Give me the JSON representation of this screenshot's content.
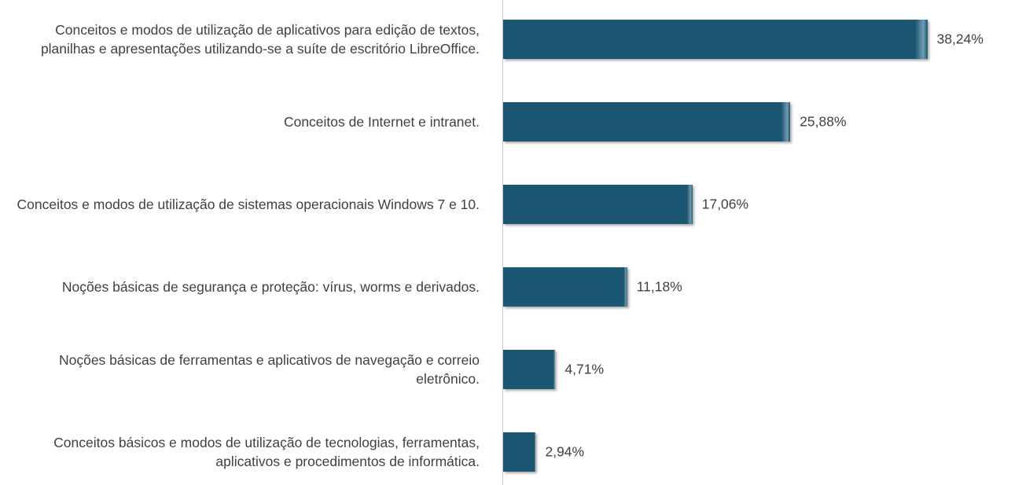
{
  "chart_data": {
    "type": "bar",
    "orientation": "horizontal",
    "categories": [
      "Conceitos e modos de utilização de aplicativos para edição de textos, planilhas e apresentações utilizando-se a suíte de escritório LibreOffice.",
      "Conceitos de Internet e intranet.",
      "Conceitos e modos de utilização de sistemas operacionais Windows 7 e 10.",
      "Noções básicas de segurança e proteção: vírus, worms e derivados.",
      "Noções básicas de ferramentas e aplicativos de navegação e correio eletrônico.",
      "Conceitos básicos e modos de utilização de tecnologias, ferramentas, aplicativos e procedimentos de informática."
    ],
    "values": [
      38.24,
      25.88,
      17.06,
      11.18,
      4.71,
      2.94
    ],
    "value_labels": [
      "38,24%",
      "25,88%",
      "17,06%",
      "11,18%",
      "4,71%",
      "2,94%"
    ],
    "color": "#1b5672",
    "xlim": [
      0,
      45
    ]
  }
}
